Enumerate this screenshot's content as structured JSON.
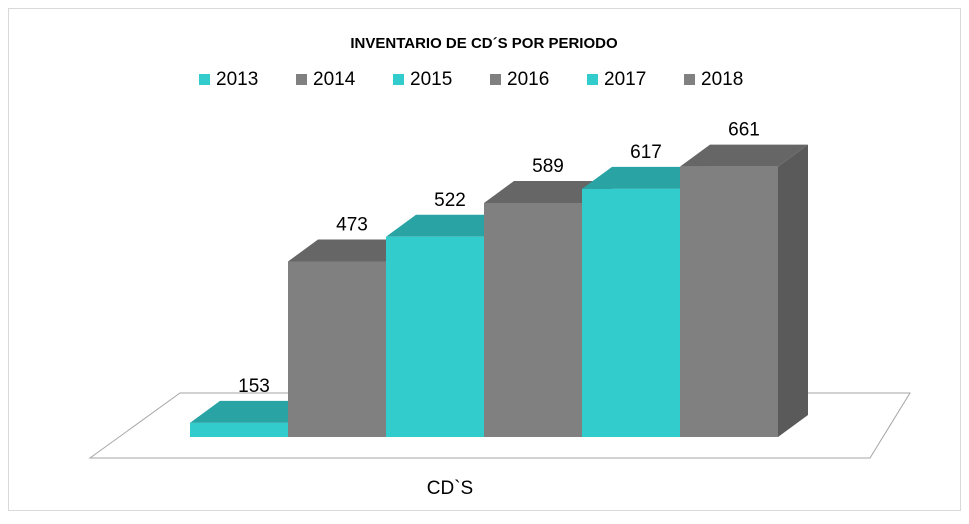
{
  "chart_data": {
    "type": "bar3d",
    "title": "INVENTARIO DE CD´S POR PERIODO",
    "categories": [
      "CD`S"
    ],
    "series": [
      {
        "name": "2013",
        "color": "#33CCCC",
        "values": [
          153
        ]
      },
      {
        "name": "2014",
        "color": "#808080",
        "values": [
          473
        ]
      },
      {
        "name": "2015",
        "color": "#33CCCC",
        "values": [
          522
        ]
      },
      {
        "name": "2016",
        "color": "#808080",
        "values": [
          589
        ]
      },
      {
        "name": "2017",
        "color": "#33CCCC",
        "values": [
          617
        ]
      },
      {
        "name": "2018",
        "color": "#808080",
        "values": [
          661
        ]
      }
    ],
    "ylim": [
      125,
      700
    ],
    "legend": "top"
  }
}
